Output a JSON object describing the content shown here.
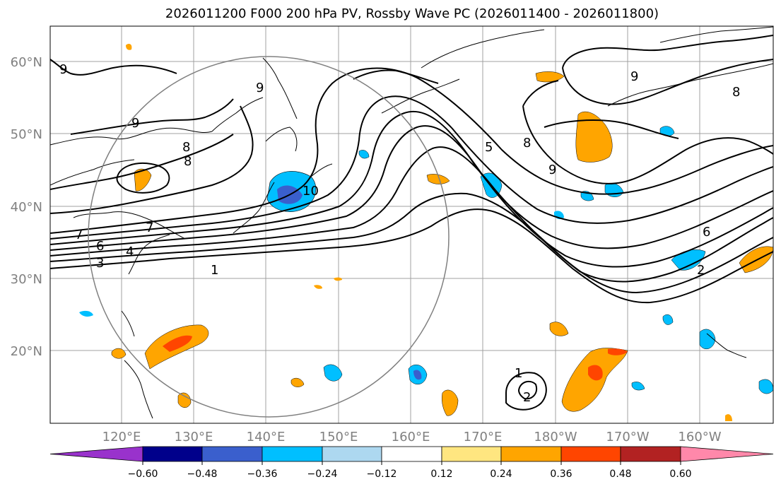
{
  "title": "2026011200 F000 200 hPa PV, Rossby Wave PC (2026011400 - 2026011800)",
  "lat_labels": [
    "60°N",
    "50°N",
    "40°N",
    "30°N",
    "20°N"
  ],
  "lon_labels": [
    "120°E",
    "130°E",
    "140°E",
    "150°E",
    "160°E",
    "170°E",
    "180°W",
    "170°W",
    "160°W"
  ],
  "contour_labels": [
    "9",
    "9",
    "8",
    "8",
    "7",
    "7",
    "6",
    "4",
    "3",
    "1",
    "9",
    "10",
    "5",
    "8",
    "9",
    "9",
    "8",
    "6",
    "2",
    "1",
    "2"
  ],
  "colorbar": {
    "labels": [
      "−0.60",
      "−0.48",
      "−0.36",
      "−0.24",
      "−0.12",
      "0.12",
      "0.24",
      "0.36",
      "0.48",
      "0.60"
    ],
    "colors": [
      "#9932cc",
      "#00008b",
      "#3a5fcd",
      "#00bfff",
      "#add8f0",
      "#ffffff",
      "#ffe680",
      "#ffa500",
      "#ff4500",
      "#b22222",
      "#ff88aa"
    ]
  }
}
